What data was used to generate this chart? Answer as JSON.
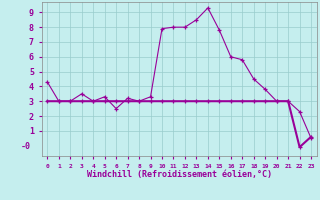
{
  "xlabel": "Windchill (Refroidissement éolien,°C)",
  "bg_color": "#c5eeee",
  "line_color": "#990099",
  "grid_color": "#99cccc",
  "text_color": "#990099",
  "x_hours": [
    0,
    1,
    2,
    3,
    4,
    5,
    6,
    7,
    8,
    9,
    10,
    11,
    12,
    13,
    14,
    15,
    16,
    17,
    18,
    19,
    20,
    21,
    22,
    23
  ],
  "line1_y": [
    4.3,
    3.0,
    3.0,
    3.5,
    3.0,
    3.3,
    2.5,
    3.2,
    3.0,
    3.3,
    7.9,
    8.0,
    8.0,
    8.5,
    9.3,
    7.8,
    6.0,
    5.8,
    4.5,
    3.8,
    3.0,
    3.0,
    2.3,
    0.5
  ],
  "line2_y": [
    3.0,
    3.0,
    3.0,
    3.0,
    3.0,
    3.0,
    3.0,
    3.0,
    3.0,
    3.0,
    3.0,
    3.0,
    3.0,
    3.0,
    3.0,
    3.0,
    3.0,
    3.0,
    3.0,
    3.0,
    3.0,
    3.0,
    -0.1,
    0.6
  ],
  "ylim": [
    -0.7,
    9.7
  ],
  "xlim": [
    -0.5,
    23.5
  ],
  "yticks": [
    1,
    2,
    3,
    4,
    5,
    6,
    7,
    8,
    9
  ],
  "ytick_labels": [
    "1",
    "2",
    "3",
    "4",
    "5",
    "6",
    "7",
    "8",
    "9"
  ],
  "xtick_labels": [
    "0",
    "1",
    "2",
    "3",
    "4",
    "5",
    "6",
    "7",
    "8",
    "9",
    "10",
    "11",
    "12",
    "13",
    "14",
    "15",
    "16",
    "17",
    "18",
    "19",
    "20",
    "21",
    "22",
    "23"
  ]
}
